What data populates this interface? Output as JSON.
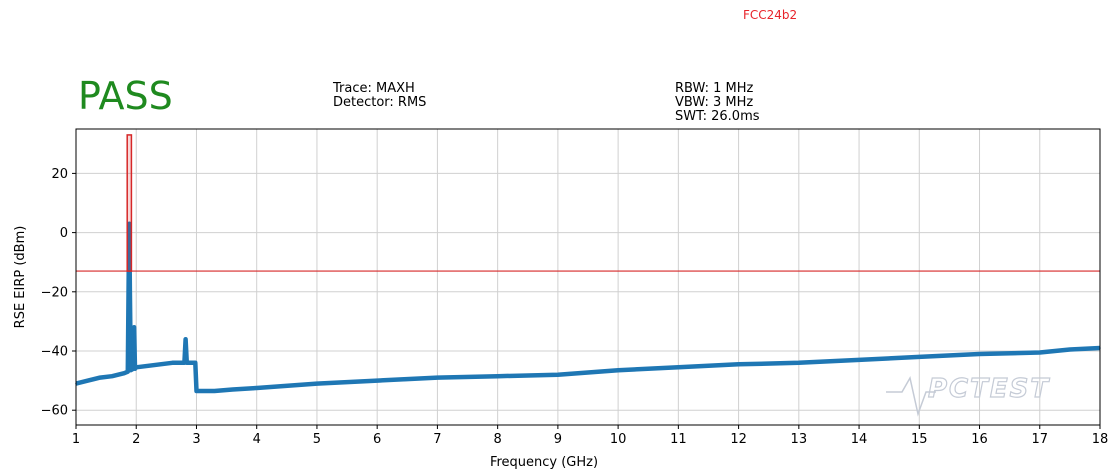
{
  "page": {
    "title": "FCC24b2",
    "verdict": "PASS",
    "verdict_color": "#1f8a1f",
    "title_color": "#e8242b"
  },
  "settings": {
    "trace": "Trace: MAXH",
    "detector": "Detector: RMS",
    "rbw": "RBW: 1 MHz",
    "vbw": "VBW: 3 MHz",
    "swt": "SWT: 26.0ms"
  },
  "watermark": {
    "text": "PCTEST"
  },
  "chart_data": {
    "type": "line",
    "xlabel": "Frequency (GHz)",
    "ylabel": "RSE EIRP (dBm)",
    "xlim": [
      1,
      18
    ],
    "ylim": [
      -65,
      35
    ],
    "xticks": [
      1,
      2,
      3,
      4,
      5,
      6,
      7,
      8,
      9,
      10,
      11,
      12,
      13,
      14,
      15,
      16,
      17,
      18
    ],
    "yticks": [
      -60,
      -40,
      -20,
      0,
      20
    ],
    "grid": true,
    "limit_line": {
      "y": -13,
      "color": "#d62728"
    },
    "excluded_band": {
      "x_start": 1.85,
      "x_end": 1.92,
      "y_top": 33,
      "color": "#d62728"
    },
    "series": [
      {
        "color": "#1f77b4",
        "x": [
          1,
          1.2,
          1.4,
          1.6,
          1.8,
          1.86,
          1.875,
          1.885,
          1.895,
          1.91,
          1.95,
          1.965,
          1.98,
          2.0,
          2.2,
          2.4,
          2.6,
          2.8,
          2.82,
          2.84,
          2.86,
          2.9,
          2.98,
          3.0,
          3.3,
          3.6,
          4,
          5,
          6,
          7,
          8,
          9,
          10,
          11,
          12,
          13,
          14,
          15,
          16,
          17,
          17.5,
          18
        ],
        "y": [
          -51,
          -50,
          -49,
          -48.5,
          -47.5,
          -47,
          -14,
          3,
          -20,
          -46.5,
          -46,
          -32,
          -46,
          -45.5,
          -45,
          -44.5,
          -44,
          -44,
          -36,
          -44,
          -44,
          -44,
          -44,
          -53.5,
          -53.5,
          -53,
          -52.5,
          -51,
          -50,
          -49,
          -48.5,
          -48,
          -46.5,
          -45.5,
          -44.5,
          -44,
          -43,
          -42,
          -41,
          -40.5,
          -39.5,
          -39
        ]
      }
    ]
  }
}
